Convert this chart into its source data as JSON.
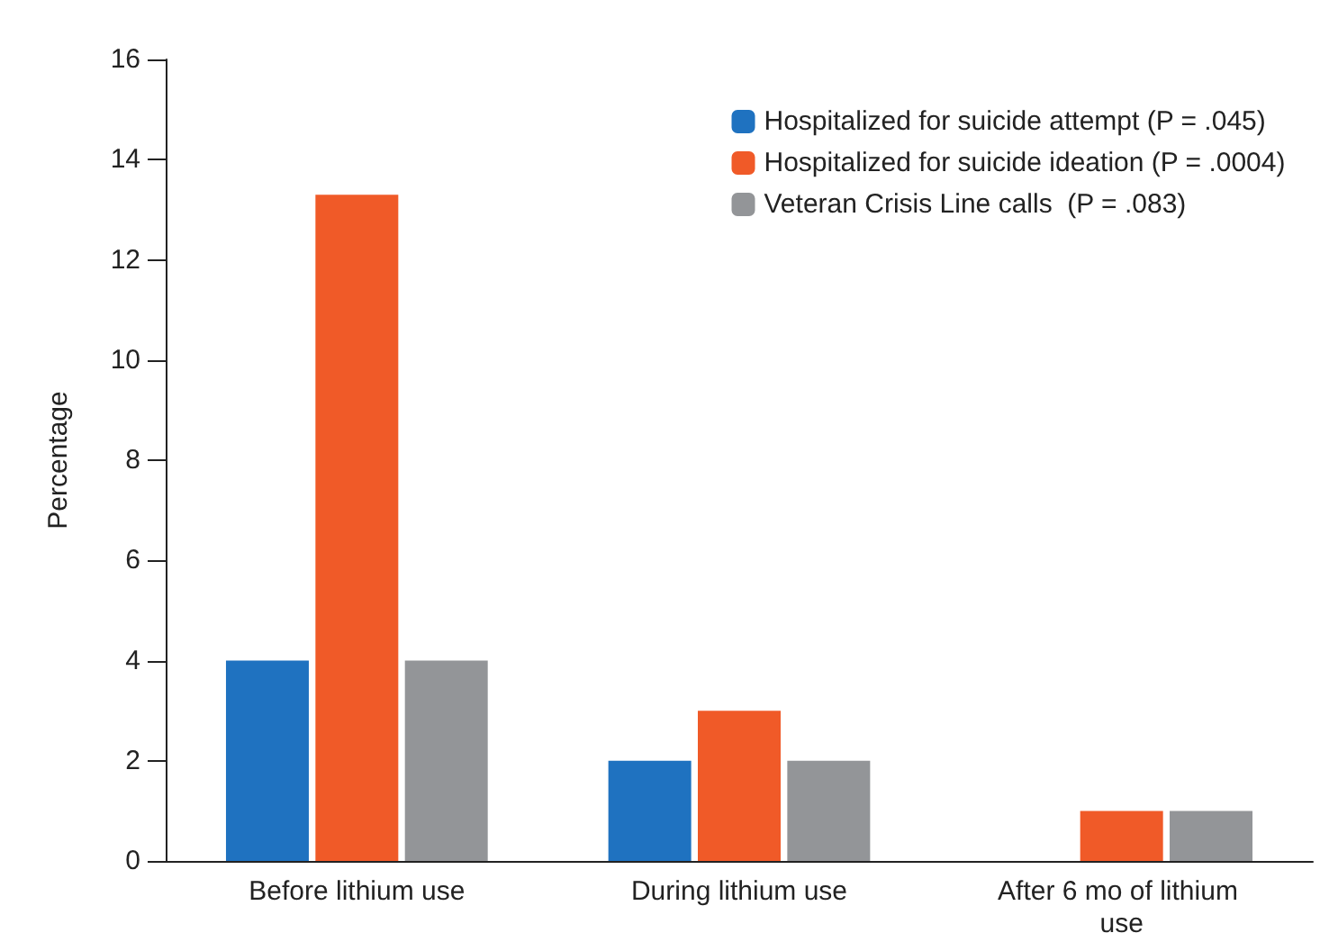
{
  "chart_data": {
    "type": "bar",
    "ylabel": "Percentage",
    "categories": [
      "Before lithium use",
      "During lithium use",
      "After 6 mo of lithium use"
    ],
    "series": [
      {
        "name": "Hospitalized for suicide attempt (P = .045)",
        "color": "#1f72c0",
        "values": [
          4,
          2,
          0
        ]
      },
      {
        "name": "Hospitalized for suicide ideation (P = .0004)",
        "color": "#f05a28",
        "values": [
          13.3,
          3,
          1
        ]
      },
      {
        "name": "Veteran Crisis Line calls  (P = .083)",
        "color": "#939598",
        "values": [
          4,
          2,
          1
        ]
      }
    ],
    "ylim": [
      0,
      16
    ],
    "yticks": [
      0,
      2,
      4,
      6,
      8,
      10,
      12,
      14,
      16
    ],
    "grid": false,
    "legend": "top right"
  }
}
